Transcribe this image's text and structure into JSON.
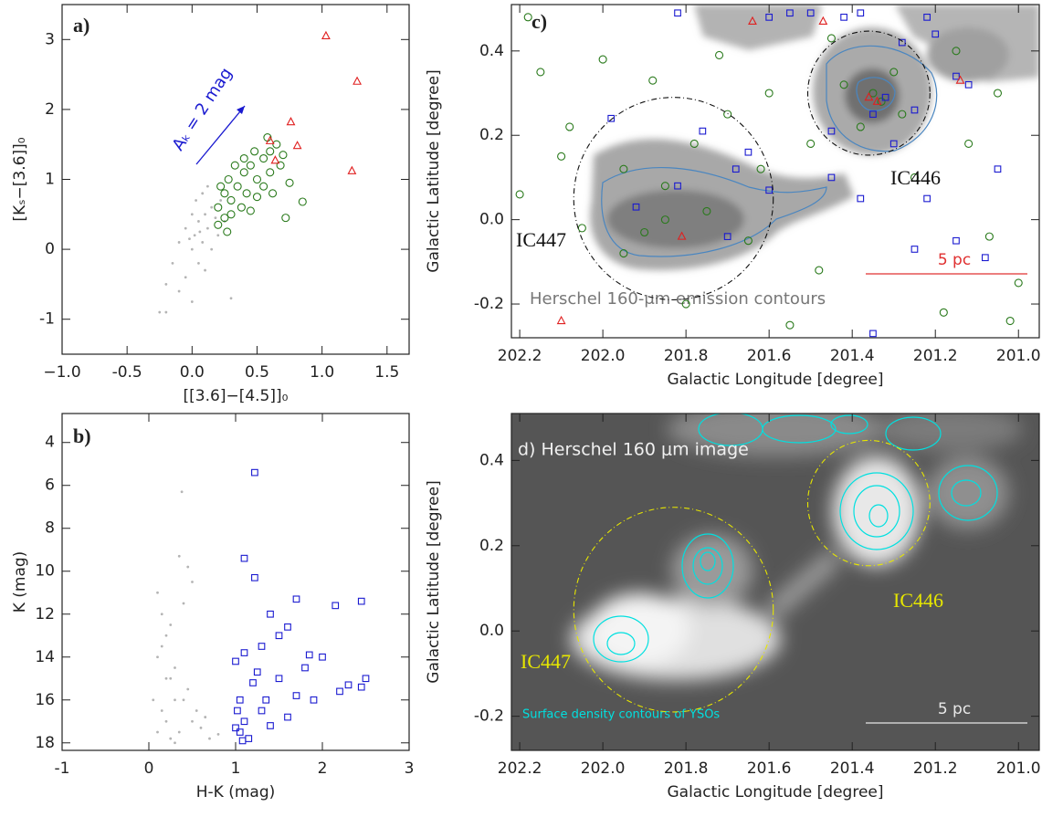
{
  "chart_data": [
    {
      "type": "scatter",
      "panel_label": "a)",
      "xlabel": "[[3.6]−[4.5]]₀",
      "ylabel": "[Kₛ−[3.6]]₀",
      "annotation": "Aₖ = 2 mag",
      "xlim": [
        -1.0,
        1.67
      ],
      "ylim": [
        -1.5,
        3.5
      ],
      "xticks": [
        {
          "value": -1,
          "label": "−1.0"
        },
        -0.5,
        {
          "value": 0,
          "label": "0.0"
        },
        0.5,
        {
          "value": 1,
          "label": "1.0"
        },
        1.5
      ],
      "yticks": [
        -1,
        0,
        1,
        2,
        3
      ],
      "series": [
        {
          "marker": "dot",
          "color": "#b4b4b4",
          "x": [
            -0.25,
            -0.2,
            -0.15,
            -0.1,
            -0.05,
            0,
            0.02,
            0.05,
            0.08,
            0.1,
            0.1,
            0.12,
            0.15,
            0.15,
            0.18,
            0.2,
            0.05,
            -0.05,
            0,
            0.03,
            0.22,
            0.25,
            0.08,
            -0.1,
            0.3,
            -0.2,
            0.12,
            0,
            -0.02,
            0.06
          ],
          "values": [
            -0.9,
            -0.5,
            -0.2,
            0.1,
            0.3,
            0,
            0.2,
            0.4,
            0.1,
            0.5,
            -0.3,
            0.3,
            0.6,
            0,
            0.45,
            0.2,
            -0.2,
            -0.4,
            0.5,
            0.7,
            0.7,
            0.4,
            0.8,
            -0.6,
            -0.7,
            -0.9,
            0.9,
            -0.75,
            0.15,
            0.25
          ]
        },
        {
          "marker": "circle",
          "color": "#2a7a1c",
          "x": [
            0.2,
            0.25,
            0.3,
            0.22,
            0.28,
            0.35,
            0.4,
            0.45,
            0.5,
            0.55,
            0.6,
            0.65,
            0.7,
            0.38,
            0.42,
            0.5,
            0.3,
            0.25,
            0.33,
            0.48,
            0.55,
            0.6,
            0.68,
            0.75,
            0.85,
            0.72,
            0.2,
            0.27,
            0.4,
            0.58,
            0.45,
            0.62
          ],
          "values": [
            0.6,
            0.8,
            0.7,
            0.9,
            1.0,
            0.9,
            1.1,
            1.2,
            1.0,
            1.3,
            1.4,
            1.5,
            1.35,
            0.6,
            0.8,
            0.75,
            0.5,
            0.45,
            1.2,
            1.4,
            0.9,
            1.1,
            1.2,
            0.95,
            0.68,
            0.45,
            0.35,
            0.25,
            1.3,
            1.6,
            0.55,
            0.8
          ]
        },
        {
          "marker": "triangle",
          "color": "#e02020",
          "x": [
            1.03,
            1.27,
            0.76,
            0.6,
            0.81,
            0.64,
            1.23
          ],
          "values": [
            3.05,
            2.4,
            1.82,
            1.55,
            1.48,
            1.27,
            1.12
          ]
        }
      ]
    },
    {
      "type": "scatter",
      "panel_label": "b)",
      "xlabel": "H-K (mag)",
      "ylabel": "K (mag)",
      "xlim": [
        -1,
        3
      ],
      "ylim": [
        18.35,
        2.65
      ],
      "xticks": [
        -1,
        0,
        1,
        2,
        3
      ],
      "yticks": [
        4,
        6,
        8,
        10,
        12,
        14,
        16,
        18
      ],
      "series": [
        {
          "marker": "dot",
          "color": "#b4b4b4",
          "x": [
            0.1,
            0.15,
            0.2,
            0.1,
            0.25,
            0.3,
            0.15,
            0.2,
            0.35,
            0.4,
            0.5,
            0.3,
            0.45,
            0.6,
            0.7,
            0.05,
            0.2,
            0.1,
            0.25,
            0.35,
            0.45,
            0.5,
            0.38,
            0.3,
            0.55,
            0.15,
            0.4,
            0.25,
            0.65,
            0.8
          ],
          "values": [
            11,
            12,
            13,
            14,
            15,
            16,
            16.5,
            17,
            17.5,
            16,
            17,
            14.5,
            15.5,
            17.3,
            17.8,
            16,
            15,
            17.5,
            12.5,
            9.3,
            9.8,
            10.5,
            6.3,
            18,
            16.5,
            13.5,
            11.5,
            17.8,
            16.8,
            17.6
          ]
        },
        {
          "marker": "square",
          "color": "#1a1ad0",
          "x": [
            1.22,
            1.1,
            1.22,
            2.15,
            2.45,
            1.7,
            1.4,
            1.6,
            1.5,
            1.3,
            1.1,
            1.85,
            2.0,
            1.8,
            2.5,
            2.3,
            2.2,
            2.45,
            1.9,
            1.5,
            1.2,
            1.05,
            1.3,
            1.1,
            1.0,
            1.15,
            1.05,
            1.4,
            1.6,
            1.02,
            1.25,
            1.7,
            1.0,
            1.35,
            1.08
          ],
          "values": [
            5.4,
            9.4,
            10.3,
            11.6,
            11.4,
            11.3,
            12,
            12.6,
            13,
            13.5,
            13.8,
            13.9,
            14.0,
            14.5,
            15.0,
            15.3,
            15.6,
            15.4,
            16.0,
            15.0,
            15.2,
            16.0,
            16.5,
            17.0,
            17.3,
            17.8,
            17.5,
            17.2,
            16.8,
            16.5,
            14.7,
            15.8,
            14.2,
            16.0,
            17.9
          ]
        }
      ]
    },
    {
      "type": "scatter",
      "panel_label": "c)",
      "xlabel": "Galactic Longitude [degree]",
      "ylabel": "Galactic Latitude [degree]",
      "caption": "Herschel 160-μm emission contours",
      "xlim": [
        202.22,
        200.95
      ],
      "ylim": [
        -0.28,
        0.51
      ],
      "xticks": [
        202.2,
        {
          "value": 202,
          "label": "202.0"
        },
        201.8,
        201.6,
        201.4,
        201.2,
        {
          "value": 201,
          "label": "201.0"
        }
      ],
      "yticks": [
        -0.2,
        {
          "value": 0,
          "label": "0.0"
        },
        0.2,
        0.4
      ],
      "regions": [
        {
          "label": "IC447",
          "x": 201.83,
          "y": 0.05,
          "r": 0.24
        },
        {
          "label": "IC446",
          "x": 201.36,
          "y": 0.3,
          "r": 0.147
        }
      ],
      "region_color": "#111111",
      "scale_bar": {
        "label": "5 pc",
        "color": "#e03030"
      },
      "series": [
        {
          "marker": "circle",
          "color": "#2a7a1c",
          "x": [
            202.18,
            202.15,
            202.0,
            201.88,
            201.72,
            202.08,
            201.95,
            201.85,
            201.78,
            201.7,
            201.6,
            201.9,
            201.85,
            201.75,
            201.95,
            202.05,
            201.65,
            201.5,
            201.42,
            201.35,
            201.33,
            201.3,
            201.28,
            201.38,
            201.25,
            201.12,
            201.05,
            201.15,
            201.45,
            202.2,
            201.8,
            201.55,
            201.18,
            201.02,
            201.0,
            201.07,
            202.1,
            201.62,
            201.48
          ],
          "values": [
            0.48,
            0.35,
            0.38,
            0.33,
            0.39,
            0.22,
            0.12,
            0.08,
            0.18,
            0.25,
            0.3,
            -0.03,
            0,
            0.02,
            -0.08,
            -0.02,
            -0.05,
            0.18,
            0.32,
            0.3,
            0.28,
            0.35,
            0.25,
            0.22,
            0.1,
            0.18,
            0.3,
            0.4,
            0.43,
            0.06,
            -0.2,
            -0.25,
            -0.22,
            -0.24,
            -0.15,
            -0.04,
            0.15,
            0.12,
            -0.12
          ]
        },
        {
          "marker": "square",
          "color": "#1a1ad0",
          "x": [
            201.82,
            201.6,
            201.55,
            201.5,
            201.42,
            201.38,
            201.28,
            201.22,
            201.2,
            201.15,
            201.12,
            201.25,
            201.32,
            201.35,
            201.3,
            201.76,
            201.65,
            201.68,
            201.82,
            201.92,
            201.7,
            201.45,
            201.38,
            201.22,
            201.05,
            201.25,
            201.08,
            201.98,
            201.6,
            201.35,
            201.15,
            201.45
          ],
          "values": [
            0.49,
            0.48,
            0.49,
            0.49,
            0.48,
            0.49,
            0.42,
            0.48,
            0.44,
            0.34,
            0.32,
            0.26,
            0.29,
            0.25,
            0.18,
            0.21,
            0.16,
            0.12,
            0.08,
            0.03,
            -0.04,
            0.1,
            0.05,
            0.05,
            0.12,
            -0.07,
            -0.09,
            0.24,
            0.07,
            -0.27,
            -0.05,
            0.21
          ]
        },
        {
          "marker": "triangle",
          "color": "#e02020",
          "x": [
            201.64,
            201.47,
            201.36,
            201.34,
            201.14,
            201.81,
            202.1
          ],
          "values": [
            0.47,
            0.47,
            0.29,
            0.28,
            0.33,
            -0.04,
            -0.24
          ]
        }
      ]
    },
    {
      "type": "image",
      "panel_label": "d) Herschel 160 μm image",
      "xlabel": "Galactic Longitude [degree]",
      "ylabel": "Galactic Latitude [degree]",
      "caption": "Surface density contours of YSOs",
      "xlim": [
        202.22,
        200.95
      ],
      "ylim": [
        -0.28,
        0.51
      ],
      "xticks": [
        202.2,
        {
          "value": 202,
          "label": "202.0"
        },
        201.8,
        201.6,
        201.4,
        201.2,
        {
          "value": 201,
          "label": "201.0"
        }
      ],
      "yticks": [
        -0.2,
        {
          "value": 0,
          "label": "0.0"
        },
        0.2,
        0.4
      ],
      "regions": [
        {
          "label": "IC447",
          "x": 201.83,
          "y": 0.05,
          "r": 0.24
        },
        {
          "label": "IC446",
          "x": 201.36,
          "y": 0.3,
          "r": 0.147
        }
      ],
      "region_color": "#e6e600",
      "scale_bar": {
        "label": "5 pc",
        "color": "#e8e8e8"
      }
    }
  ]
}
